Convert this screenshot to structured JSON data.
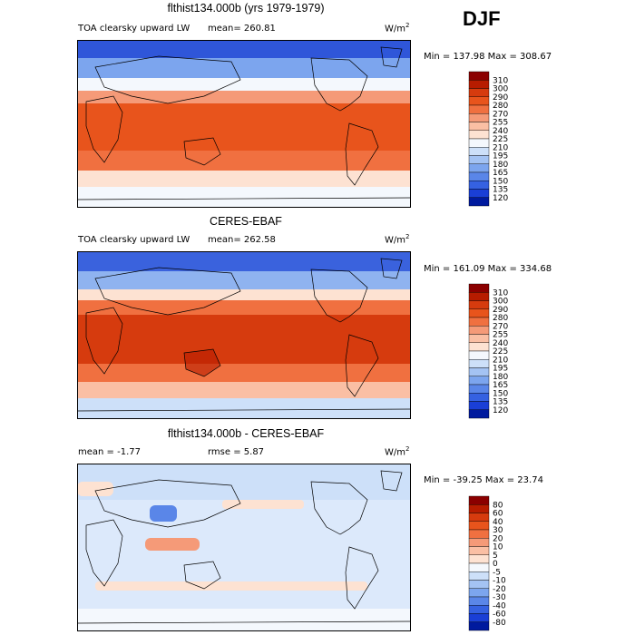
{
  "season": "DJF",
  "units_base": "W/m",
  "units_exp": "2",
  "panels": [
    {
      "title": "flthist134.000b (yrs 1979-1979)",
      "subtitle": "TOA clearsky upward LW",
      "stat_text": "mean= 260.81",
      "minmax": "Min = 137.98 Max = 308.67",
      "levels": [
        "310",
        "300",
        "290",
        "280",
        "270",
        "255",
        "240",
        "225",
        "210",
        "195",
        "180",
        "165",
        "150",
        "135",
        "120"
      ],
      "colors": [
        "#8b0000",
        "#b71c00",
        "#d63b0e",
        "#e8541c",
        "#f07040",
        "#f59a78",
        "#fabfa4",
        "#fde2d2",
        "#f4f8fd",
        "#cde0f9",
        "#a4c3f3",
        "#7ca5ee",
        "#5a86e8",
        "#3561e1",
        "#1a3fd6",
        "#001a9e"
      ]
    },
    {
      "title": "CERES-EBAF",
      "subtitle": "TOA clearsky upward LW",
      "stat_text": "mean= 262.58",
      "minmax": "Min = 161.09 Max = 334.68",
      "levels": [
        "310",
        "300",
        "290",
        "280",
        "270",
        "255",
        "240",
        "225",
        "210",
        "195",
        "180",
        "165",
        "150",
        "135",
        "120"
      ],
      "colors": [
        "#8b0000",
        "#b71c00",
        "#d63b0e",
        "#e8541c",
        "#f07040",
        "#f59a78",
        "#fabfa4",
        "#fde2d2",
        "#f4f8fd",
        "#cde0f9",
        "#a4c3f3",
        "#7ca5ee",
        "#5a86e8",
        "#3561e1",
        "#1a3fd6",
        "#001a9e"
      ]
    },
    {
      "title": "flthist134.000b - CERES-EBAF",
      "stat_mean": "mean =  -1.77",
      "stat_rmse": "rmse =   5.87",
      "minmax": "Min = -39.25 Max =  23.74",
      "levels": [
        "80",
        "60",
        "40",
        "30",
        "20",
        "10",
        "5",
        "0",
        "-5",
        "-10",
        "-20",
        "-30",
        "-40",
        "-60",
        "-80"
      ],
      "colors": [
        "#8b0000",
        "#b71c00",
        "#d63b0e",
        "#e8541c",
        "#f07040",
        "#f59a78",
        "#fabfa4",
        "#fde2d2",
        "#f4f8fd",
        "#cde0f9",
        "#a4c3f3",
        "#7ca5ee",
        "#5a86e8",
        "#3561e1",
        "#1a3fd6",
        "#001a9e"
      ]
    }
  ],
  "chart_data": [
    {
      "type": "heatmap",
      "title": "flthist134.000b (yrs 1979-1979)",
      "variable": "TOA clearsky upward LW",
      "mean": 260.81,
      "min": 137.98,
      "max": 308.67,
      "contour_levels": [
        120,
        135,
        150,
        165,
        180,
        195,
        210,
        225,
        240,
        255,
        270,
        280,
        290,
        300,
        310
      ]
    },
    {
      "type": "heatmap",
      "title": "CERES-EBAF",
      "variable": "TOA clearsky upward LW",
      "mean": 262.58,
      "min": 161.09,
      "max": 334.68,
      "contour_levels": [
        120,
        135,
        150,
        165,
        180,
        195,
        210,
        225,
        240,
        255,
        270,
        280,
        290,
        300,
        310
      ]
    },
    {
      "type": "heatmap",
      "title": "flthist134.000b - CERES-EBAF",
      "mean": -1.77,
      "rmse": 5.87,
      "min": -39.25,
      "max": 23.74,
      "contour_levels": [
        -80,
        -60,
        -40,
        -30,
        -20,
        -10,
        -5,
        0,
        5,
        10,
        20,
        30,
        40,
        60,
        80
      ]
    }
  ]
}
